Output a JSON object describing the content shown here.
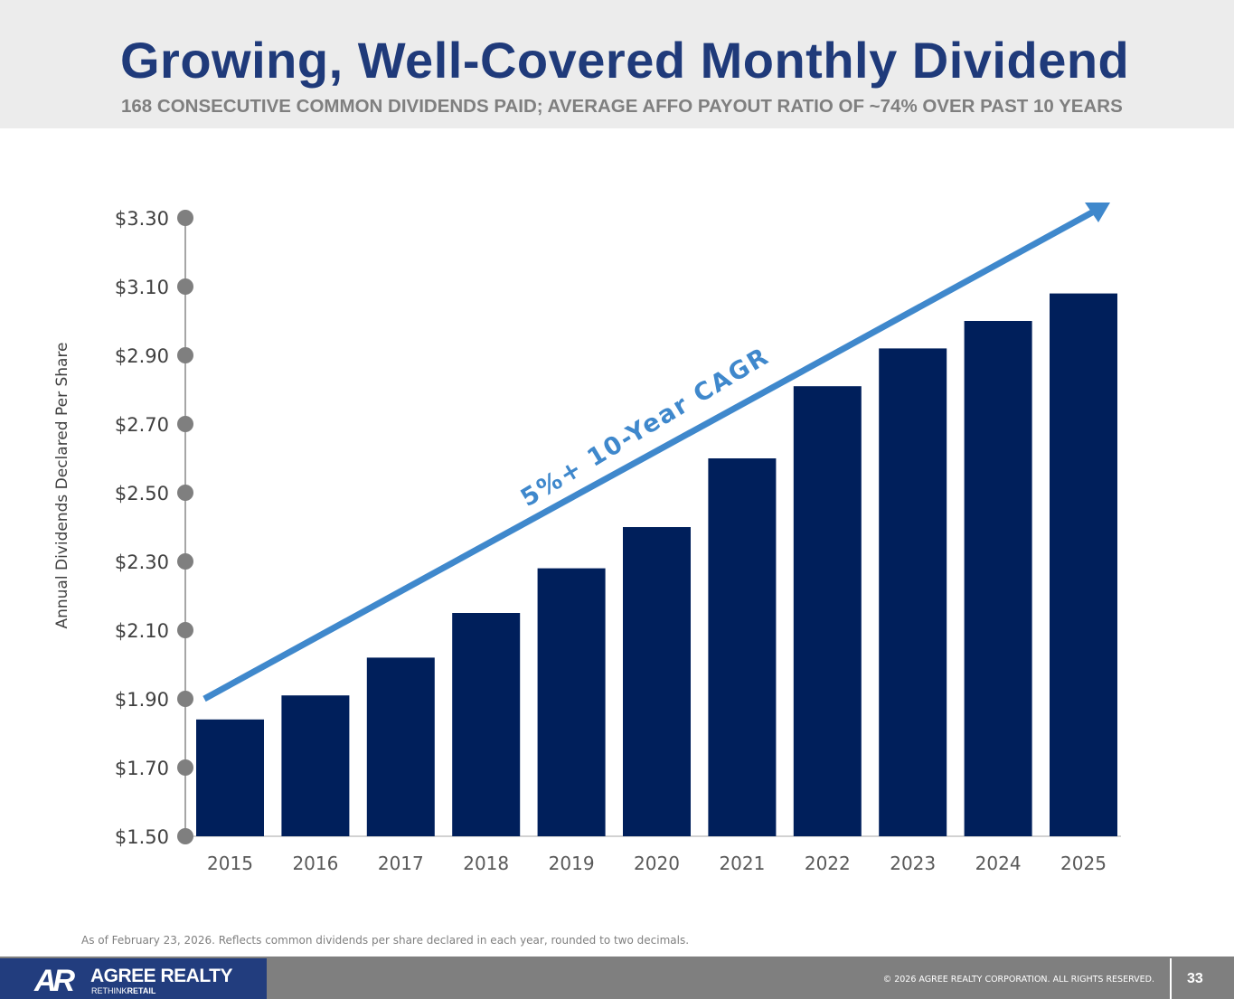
{
  "header": {
    "title": "Growing, Well-Covered Monthly Dividend",
    "subtitle": "168 CONSECUTIVE COMMON DIVIDENDS PAID; AVERAGE AFFO PAYOUT RATIO OF ~74% OVER PAST 10 YEARS"
  },
  "chart_data": {
    "type": "bar",
    "title": "",
    "xlabel": "",
    "ylabel": "Annual Dividends Declared Per Share",
    "categories": [
      "2015",
      "2016",
      "2017",
      "2018",
      "2019",
      "2020",
      "2021",
      "2022",
      "2023",
      "2024",
      "2025"
    ],
    "values": [
      1.84,
      1.91,
      2.02,
      2.15,
      2.28,
      2.4,
      2.6,
      2.81,
      2.92,
      3.0,
      3.08
    ],
    "ylim": [
      1.5,
      3.3
    ],
    "yticks": [
      1.5,
      1.7,
      1.9,
      2.1,
      2.3,
      2.5,
      2.7,
      2.9,
      3.1,
      3.3
    ],
    "ytick_labels": [
      "$1.50",
      "$1.70",
      "$1.90",
      "$2.10",
      "$2.30",
      "$2.50",
      "$2.70",
      "$2.90",
      "$3.10",
      "$3.30"
    ],
    "grid": false,
    "bar_color": "#001f5b",
    "annotation": {
      "text": "5%+ 10-Year CAGR",
      "color": "#3f88cc",
      "type": "trend-arrow"
    }
  },
  "footnote": "As of February 23, 2026. Reflects common dividends per share declared in each year, rounded to two decimals.",
  "footer": {
    "logo_mark": "AR",
    "logo_name": "AGREE REALTY",
    "logo_tag_1": "RETHINK",
    "logo_tag_2": "RETAIL",
    "copyright": "© 2026 AGREE REALTY CORPORATION. ALL RIGHTS RESERVED.",
    "page_number": "33"
  }
}
